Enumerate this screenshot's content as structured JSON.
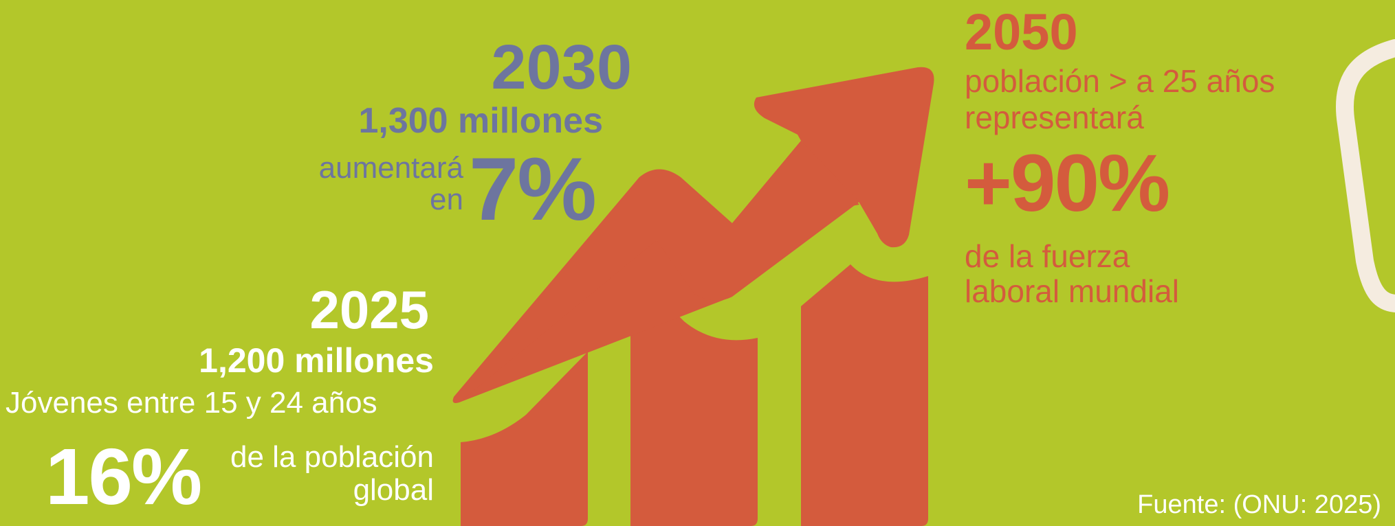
{
  "colors": {
    "background": "#b3c72a",
    "accent_orange": "#d45b3d",
    "accent_slate": "#6d759f",
    "text_white": "#ffffff",
    "decor_cream": "#f5ece0"
  },
  "icons": {
    "chart": "growth-chart-icon"
  },
  "y2030": {
    "year": "2030",
    "amount": "1,300 millones",
    "lead": "aumentará",
    "lead2": "en",
    "percent": "7%"
  },
  "y2025": {
    "year": "2025",
    "amount": "1,200 millones",
    "description": "Jóvenes entre 15 y 24 años",
    "percent": "16%",
    "of_line1": "de la población",
    "of_line2": "global"
  },
  "y2050": {
    "year": "2050",
    "line1": "población > a 25 años",
    "line2": "representará",
    "percent": "+90%",
    "line3": "de la fuerza",
    "line4": "laboral mundial"
  },
  "source": "Fuente: (ONU: 2025)"
}
